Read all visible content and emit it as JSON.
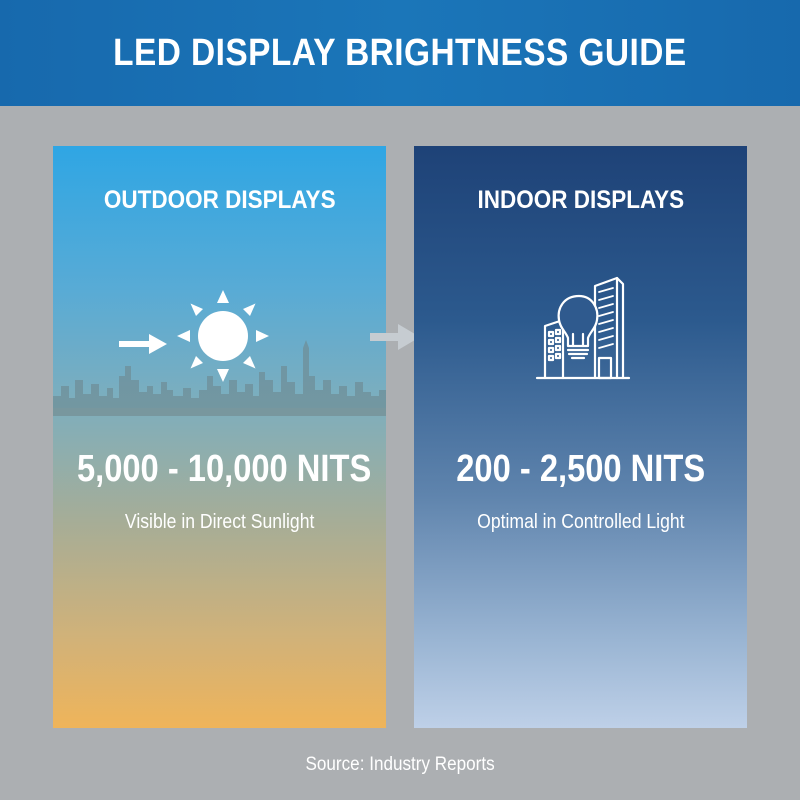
{
  "header": {
    "title": "LED DISPLAY BRIGHTNESS GUIDE"
  },
  "outdoor": {
    "title": "OUTDOOR DISPLAYS",
    "value": "5,000 - 10,000 NITS",
    "subtitle": "Visible in Direct Sunlight",
    "icon": "sun-icon"
  },
  "indoor": {
    "title": "INDOOR DISPLAYS",
    "value": "200 - 2,500 NITS",
    "subtitle": "Optimal in Controlled Light",
    "icon": "lightbulb-building-icon"
  },
  "footer": {
    "source": "Source: Industry Reports"
  },
  "colors": {
    "header": "#1b76b9",
    "background": "#acafb2",
    "outdoor_top": "#2fa6e4",
    "outdoor_bottom": "#efb45a",
    "indoor_top": "#1e4277",
    "indoor_bottom": "#bed0e8"
  }
}
